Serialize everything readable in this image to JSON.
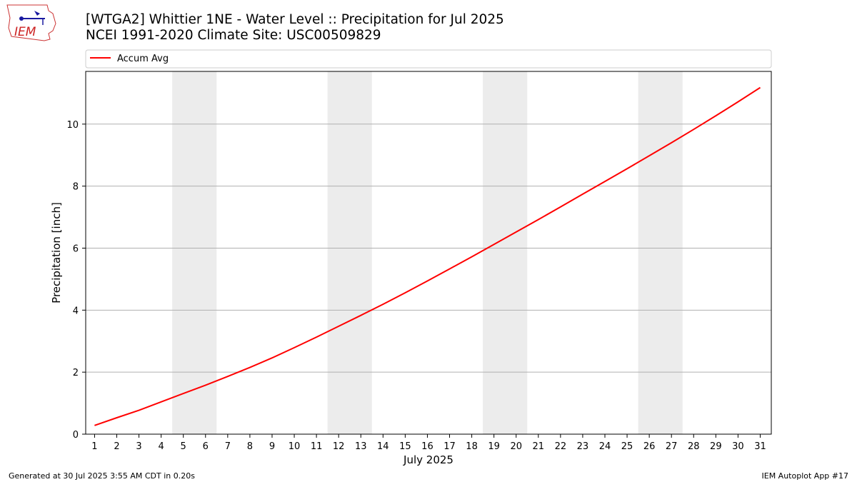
{
  "header": {
    "title_line1": "[WTGA2] Whittier 1NE - Water Level :: Precipitation for Jul 2025",
    "title_line2": "NCEI 1991-2020 Climate Site: USC00509829"
  },
  "logo": {
    "text": "IEM"
  },
  "footer": {
    "generated": "Generated at 30 Jul 2025 3:55 AM CDT in 0.20s",
    "app": "IEM Autoplot App #17"
  },
  "colors": {
    "line": "#ff0000",
    "weekend": "#ececec",
    "grid": "#b0b0b0"
  },
  "chart_data": {
    "type": "line",
    "xlabel": "July 2025",
    "ylabel": "Precipitation [inch]",
    "xlim": [
      0.6,
      31.5
    ],
    "ylim": [
      0,
      11.7
    ],
    "x": [
      1,
      2,
      3,
      4,
      5,
      6,
      7,
      8,
      9,
      10,
      11,
      12,
      13,
      14,
      15,
      16,
      17,
      18,
      19,
      20,
      21,
      22,
      23,
      24,
      25,
      26,
      27,
      28,
      29,
      30,
      31
    ],
    "x_tick_labels": [
      "1",
      "2",
      "3",
      "4",
      "5",
      "6",
      "7",
      "8",
      "9",
      "10",
      "11",
      "12",
      "13",
      "14",
      "15",
      "16",
      "17",
      "18",
      "19",
      "20",
      "21",
      "22",
      "23",
      "24",
      "25",
      "26",
      "27",
      "28",
      "29",
      "30",
      "31"
    ],
    "y_ticks": [
      0,
      2,
      4,
      6,
      8,
      10
    ],
    "y_tick_labels": [
      "0",
      "2",
      "4",
      "6",
      "8",
      "10"
    ],
    "grid": "horizontal",
    "legend_position": "top",
    "weekend_spans": [
      [
        4.5,
        6.5
      ],
      [
        11.5,
        13.5
      ],
      [
        18.5,
        20.5
      ],
      [
        25.5,
        27.5
      ]
    ],
    "series": [
      {
        "name": "Accum Avg",
        "values": [
          0.28,
          0.53,
          0.77,
          1.04,
          1.31,
          1.58,
          1.86,
          2.15,
          2.46,
          2.79,
          3.13,
          3.48,
          3.83,
          4.19,
          4.56,
          4.94,
          5.33,
          5.72,
          6.12,
          6.52,
          6.92,
          7.33,
          7.74,
          8.15,
          8.56,
          8.98,
          9.4,
          9.83,
          10.27,
          10.72,
          11.18
        ]
      }
    ]
  }
}
